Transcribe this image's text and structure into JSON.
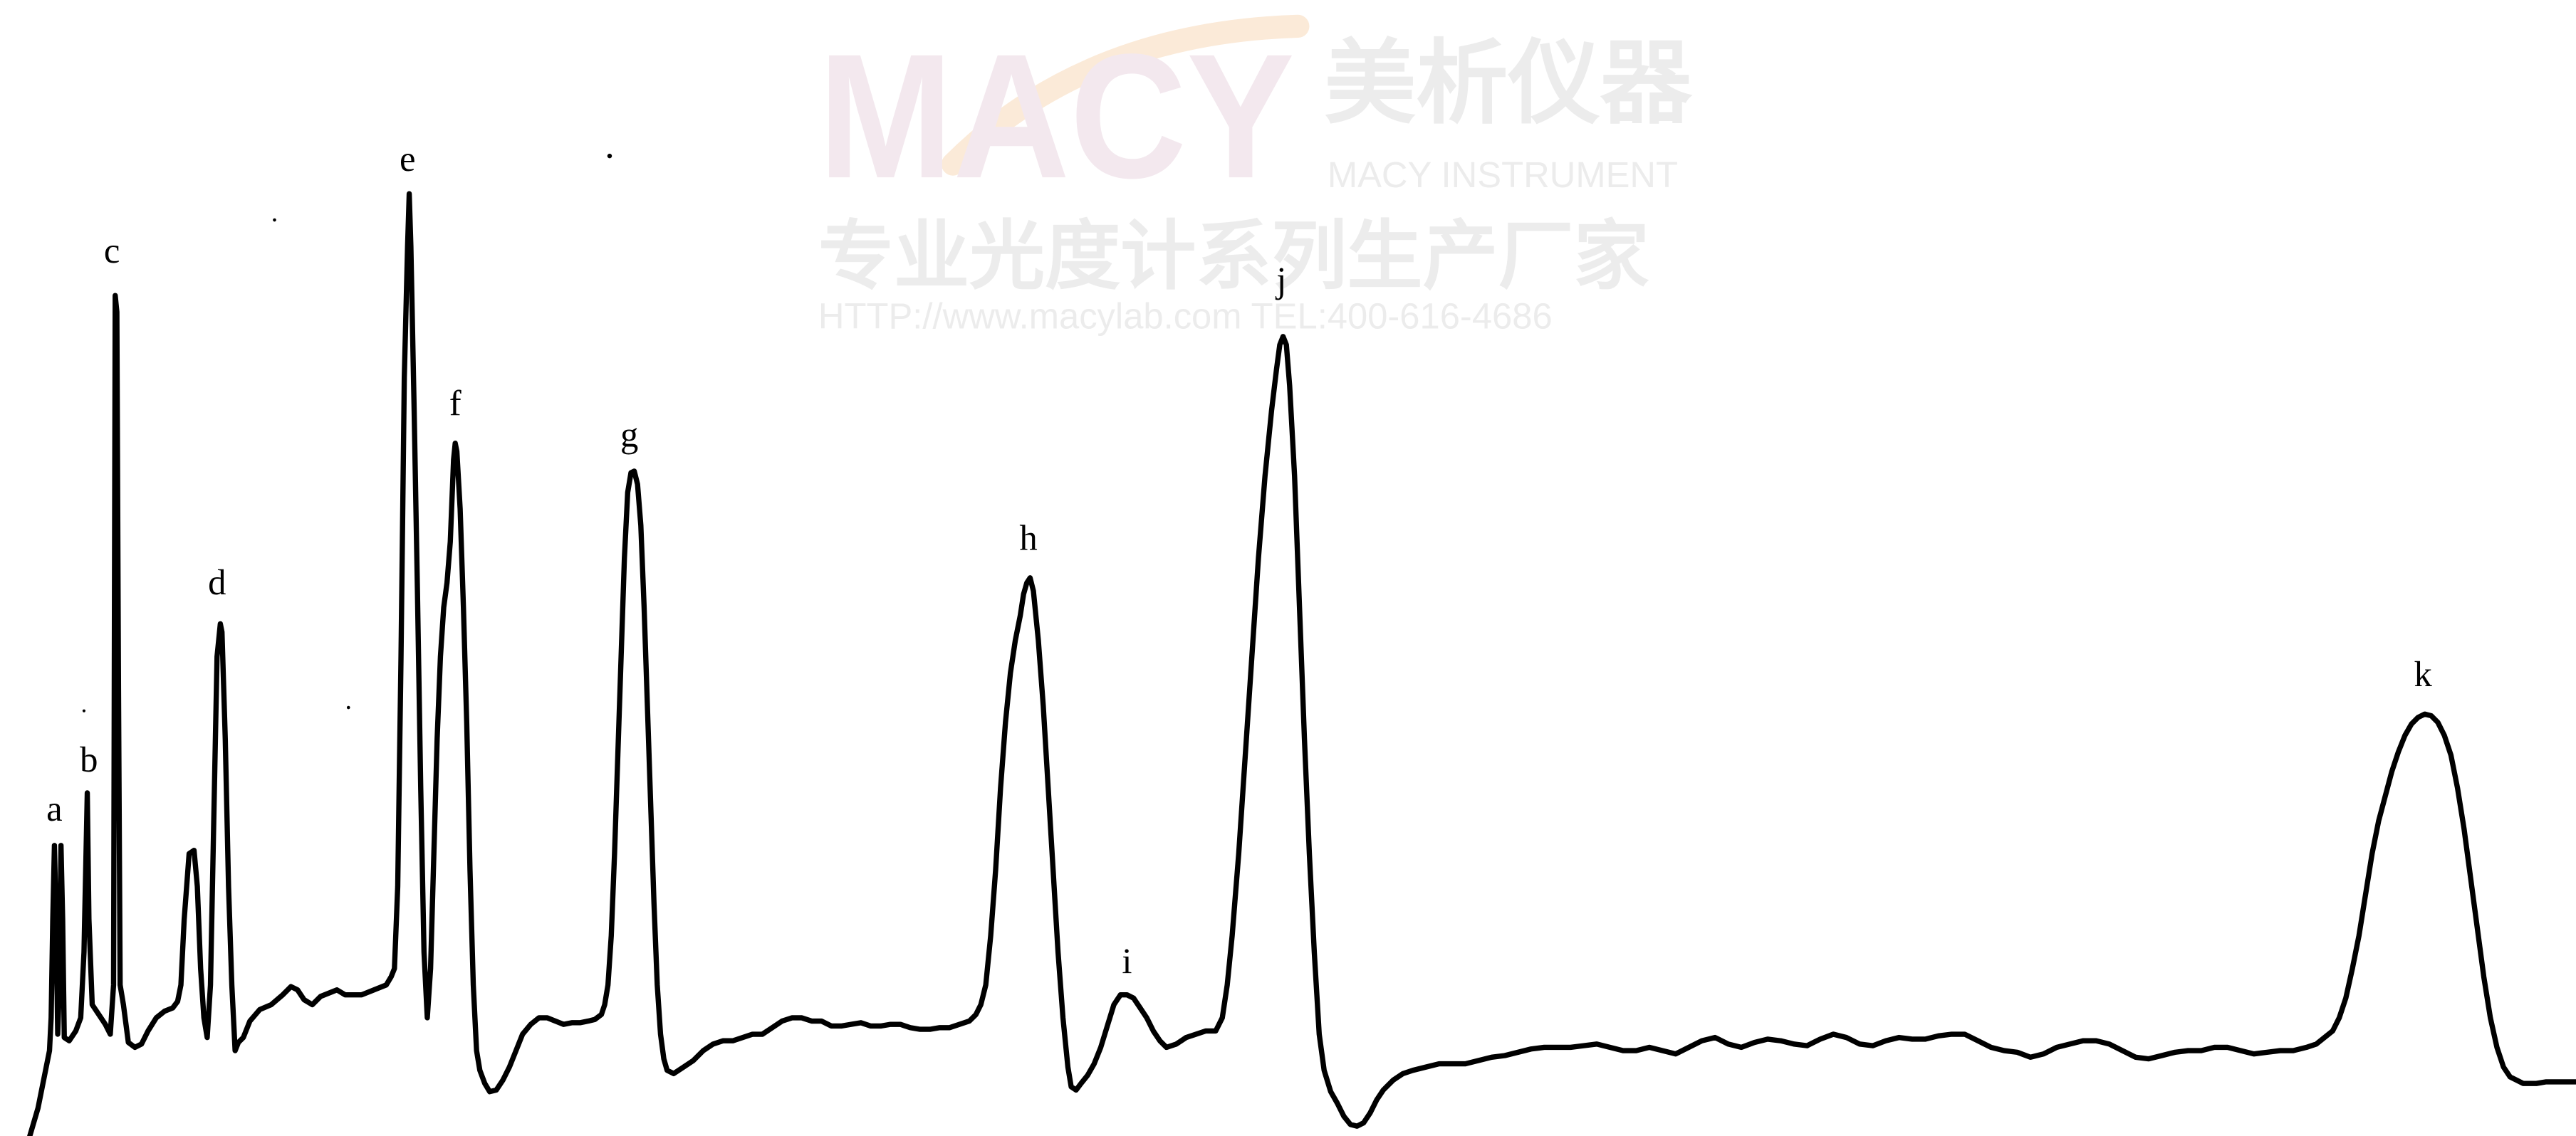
{
  "chart_data": {
    "type": "line",
    "title": "",
    "xlabel": "",
    "ylabel": "",
    "grid": false,
    "legend": "none",
    "line_color": "#000000",
    "x_range": [
      0,
      1568
    ],
    "y_range": [
      0,
      692
    ],
    "points": [
      [
        18,
        692
      ],
      [
        23,
        675
      ],
      [
        27,
        655
      ],
      [
        30,
        640
      ],
      [
        31,
        620
      ],
      [
        32,
        560
      ],
      [
        33,
        515
      ],
      [
        34,
        560
      ],
      [
        35,
        630
      ],
      [
        36,
        600
      ],
      [
        37,
        515
      ],
      [
        38,
        560
      ],
      [
        39,
        632
      ],
      [
        42,
        634
      ],
      [
        46,
        628
      ],
      [
        49,
        620
      ],
      [
        51,
        580
      ],
      [
        53,
        483
      ],
      [
        54,
        560
      ],
      [
        56,
        612
      ],
      [
        60,
        618
      ],
      [
        64,
        624
      ],
      [
        67,
        630
      ],
      [
        69,
        600
      ],
      [
        70,
        180
      ],
      [
        71,
        190
      ],
      [
        72,
        420
      ],
      [
        73,
        600
      ],
      [
        75,
        612
      ],
      [
        78,
        635
      ],
      [
        82,
        638
      ],
      [
        86,
        636
      ],
      [
        90,
        628
      ],
      [
        95,
        620
      ],
      [
        100,
        616
      ],
      [
        105,
        614
      ],
      [
        108,
        610
      ],
      [
        110,
        600
      ],
      [
        112,
        560
      ],
      [
        115,
        520
      ],
      [
        118,
        518
      ],
      [
        120,
        540
      ],
      [
        122,
        590
      ],
      [
        124,
        620
      ],
      [
        126,
        632
      ],
      [
        128,
        600
      ],
      [
        130,
        500
      ],
      [
        132,
        400
      ],
      [
        134,
        380
      ],
      [
        135,
        385
      ],
      [
        137,
        450
      ],
      [
        139,
        540
      ],
      [
        141,
        600
      ],
      [
        143,
        640
      ],
      [
        145,
        635
      ],
      [
        148,
        632
      ],
      [
        152,
        622
      ],
      [
        158,
        615
      ],
      [
        165,
        612
      ],
      [
        172,
        606
      ],
      [
        177,
        601
      ],
      [
        181,
        603
      ],
      [
        185,
        609
      ],
      [
        190,
        612
      ],
      [
        195,
        607
      ],
      [
        200,
        605
      ],
      [
        205,
        603
      ],
      [
        210,
        606
      ],
      [
        215,
        606
      ],
      [
        220,
        606
      ],
      [
        225,
        604
      ],
      [
        230,
        602
      ],
      [
        235,
        600
      ],
      [
        238,
        595
      ],
      [
        240,
        590
      ],
      [
        242,
        540
      ],
      [
        244,
        400
      ],
      [
        246,
        230
      ],
      [
        248,
        150
      ],
      [
        249,
        118
      ],
      [
        250,
        150
      ],
      [
        252,
        250
      ],
      [
        254,
        360
      ],
      [
        256,
        480
      ],
      [
        258,
        580
      ],
      [
        260,
        620
      ],
      [
        262,
        590
      ],
      [
        264,
        520
      ],
      [
        266,
        450
      ],
      [
        268,
        400
      ],
      [
        270,
        370
      ],
      [
        272,
        355
      ],
      [
        274,
        330
      ],
      [
        276,
        280
      ],
      [
        277,
        270
      ],
      [
        278,
        275
      ],
      [
        280,
        310
      ],
      [
        282,
        370
      ],
      [
        284,
        440
      ],
      [
        286,
        530
      ],
      [
        288,
        600
      ],
      [
        290,
        640
      ],
      [
        292,
        652
      ],
      [
        295,
        660
      ],
      [
        298,
        665
      ],
      [
        302,
        664
      ],
      [
        306,
        658
      ],
      [
        310,
        650
      ],
      [
        314,
        640
      ],
      [
        318,
        630
      ],
      [
        323,
        624
      ],
      [
        328,
        620
      ],
      [
        333,
        620
      ],
      [
        338,
        622
      ],
      [
        343,
        624
      ],
      [
        348,
        623
      ],
      [
        353,
        623
      ],
      [
        358,
        622
      ],
      [
        362,
        621
      ],
      [
        366,
        618
      ],
      [
        368,
        612
      ],
      [
        370,
        600
      ],
      [
        372,
        570
      ],
      [
        374,
        520
      ],
      [
        376,
        460
      ],
      [
        378,
        400
      ],
      [
        380,
        340
      ],
      [
        382,
        300
      ],
      [
        384,
        288
      ],
      [
        386,
        287
      ],
      [
        388,
        295
      ],
      [
        390,
        320
      ],
      [
        392,
        370
      ],
      [
        394,
        430
      ],
      [
        396,
        490
      ],
      [
        398,
        550
      ],
      [
        400,
        600
      ],
      [
        402,
        630
      ],
      [
        404,
        645
      ],
      [
        406,
        652
      ],
      [
        410,
        654
      ],
      [
        416,
        650
      ],
      [
        422,
        646
      ],
      [
        428,
        640
      ],
      [
        434,
        636
      ],
      [
        440,
        634
      ],
      [
        446,
        634
      ],
      [
        452,
        632
      ],
      [
        458,
        630
      ],
      [
        464,
        630
      ],
      [
        470,
        626
      ],
      [
        476,
        622
      ],
      [
        482,
        620
      ],
      [
        488,
        620
      ],
      [
        494,
        622
      ],
      [
        500,
        622
      ],
      [
        506,
        625
      ],
      [
        512,
        625
      ],
      [
        518,
        624
      ],
      [
        524,
        623
      ],
      [
        530,
        625
      ],
      [
        536,
        625
      ],
      [
        542,
        624
      ],
      [
        548,
        624
      ],
      [
        554,
        626
      ],
      [
        560,
        627
      ],
      [
        566,
        627
      ],
      [
        572,
        626
      ],
      [
        578,
        626
      ],
      [
        584,
        624
      ],
      [
        590,
        622
      ],
      [
        594,
        618
      ],
      [
        597,
        612
      ],
      [
        600,
        600
      ],
      [
        603,
        570
      ],
      [
        606,
        530
      ],
      [
        609,
        480
      ],
      [
        612,
        440
      ],
      [
        615,
        410
      ],
      [
        618,
        390
      ],
      [
        621,
        375
      ],
      [
        623,
        362
      ],
      [
        625,
        355
      ],
      [
        627,
        352
      ],
      [
        629,
        360
      ],
      [
        632,
        390
      ],
      [
        635,
        430
      ],
      [
        638,
        480
      ],
      [
        641,
        530
      ],
      [
        644,
        580
      ],
      [
        647,
        620
      ],
      [
        650,
        650
      ],
      [
        652,
        662
      ],
      [
        655,
        664
      ],
      [
        658,
        660
      ],
      [
        662,
        655
      ],
      [
        666,
        648
      ],
      [
        670,
        638
      ],
      [
        674,
        625
      ],
      [
        678,
        612
      ],
      [
        682,
        606
      ],
      [
        686,
        606
      ],
      [
        690,
        608
      ],
      [
        694,
        614
      ],
      [
        698,
        620
      ],
      [
        702,
        628
      ],
      [
        706,
        634
      ],
      [
        710,
        638
      ],
      [
        716,
        636
      ],
      [
        722,
        632
      ],
      [
        728,
        630
      ],
      [
        734,
        628
      ],
      [
        740,
        628
      ],
      [
        744,
        620
      ],
      [
        747,
        600
      ],
      [
        750,
        570
      ],
      [
        754,
        520
      ],
      [
        758,
        460
      ],
      [
        762,
        400
      ],
      [
        766,
        340
      ],
      [
        770,
        290
      ],
      [
        774,
        250
      ],
      [
        777,
        225
      ],
      [
        779,
        210
      ],
      [
        781,
        205
      ],
      [
        783,
        210
      ],
      [
        785,
        235
      ],
      [
        788,
        290
      ],
      [
        791,
        370
      ],
      [
        794,
        450
      ],
      [
        797,
        520
      ],
      [
        800,
        580
      ],
      [
        803,
        630
      ],
      [
        806,
        652
      ],
      [
        810,
        665
      ],
      [
        814,
        672
      ],
      [
        818,
        680
      ],
      [
        822,
        685
      ],
      [
        826,
        686
      ],
      [
        830,
        684
      ],
      [
        834,
        678
      ],
      [
        838,
        670
      ],
      [
        842,
        664
      ],
      [
        848,
        658
      ],
      [
        854,
        654
      ],
      [
        860,
        652
      ],
      [
        868,
        650
      ],
      [
        876,
        648
      ],
      [
        884,
        648
      ],
      [
        892,
        648
      ],
      [
        900,
        646
      ],
      [
        908,
        644
      ],
      [
        916,
        643
      ],
      [
        924,
        641
      ],
      [
        932,
        639
      ],
      [
        940,
        638
      ],
      [
        948,
        638
      ],
      [
        956,
        638
      ],
      [
        964,
        637
      ],
      [
        972,
        636
      ],
      [
        980,
        638
      ],
      [
        988,
        640
      ],
      [
        996,
        640
      ],
      [
        1004,
        638
      ],
      [
        1012,
        640
      ],
      [
        1020,
        642
      ],
      [
        1028,
        638
      ],
      [
        1036,
        634
      ],
      [
        1044,
        632
      ],
      [
        1052,
        636
      ],
      [
        1060,
        638
      ],
      [
        1068,
        635
      ],
      [
        1076,
        633
      ],
      [
        1084,
        634
      ],
      [
        1092,
        636
      ],
      [
        1100,
        637
      ],
      [
        1108,
        633
      ],
      [
        1116,
        630
      ],
      [
        1124,
        632
      ],
      [
        1132,
        636
      ],
      [
        1140,
        637
      ],
      [
        1148,
        634
      ],
      [
        1156,
        632
      ],
      [
        1164,
        633
      ],
      [
        1172,
        633
      ],
      [
        1180,
        631
      ],
      [
        1188,
        630
      ],
      [
        1196,
        630
      ],
      [
        1204,
        634
      ],
      [
        1212,
        638
      ],
      [
        1220,
        640
      ],
      [
        1228,
        641
      ],
      [
        1236,
        644
      ],
      [
        1244,
        642
      ],
      [
        1252,
        638
      ],
      [
        1260,
        636
      ],
      [
        1268,
        634
      ],
      [
        1276,
        634
      ],
      [
        1284,
        636
      ],
      [
        1292,
        640
      ],
      [
        1300,
        644
      ],
      [
        1308,
        645
      ],
      [
        1316,
        643
      ],
      [
        1324,
        641
      ],
      [
        1332,
        640
      ],
      [
        1340,
        640
      ],
      [
        1348,
        638
      ],
      [
        1356,
        638
      ],
      [
        1364,
        640
      ],
      [
        1372,
        642
      ],
      [
        1380,
        641
      ],
      [
        1388,
        640
      ],
      [
        1396,
        640
      ],
      [
        1404,
        638
      ],
      [
        1410,
        636
      ],
      [
        1415,
        632
      ],
      [
        1420,
        628
      ],
      [
        1424,
        620
      ],
      [
        1428,
        608
      ],
      [
        1432,
        590
      ],
      [
        1436,
        570
      ],
      [
        1440,
        545
      ],
      [
        1444,
        520
      ],
      [
        1448,
        500
      ],
      [
        1452,
        485
      ],
      [
        1456,
        470
      ],
      [
        1460,
        458
      ],
      [
        1464,
        448
      ],
      [
        1468,
        441
      ],
      [
        1472,
        437
      ],
      [
        1476,
        435
      ],
      [
        1480,
        436
      ],
      [
        1484,
        440
      ],
      [
        1488,
        448
      ],
      [
        1492,
        460
      ],
      [
        1496,
        480
      ],
      [
        1500,
        505
      ],
      [
        1504,
        535
      ],
      [
        1508,
        565
      ],
      [
        1512,
        595
      ],
      [
        1516,
        620
      ],
      [
        1520,
        638
      ],
      [
        1524,
        650
      ],
      [
        1528,
        656
      ],
      [
        1532,
        658
      ],
      [
        1536,
        660
      ],
      [
        1540,
        660
      ],
      [
        1544,
        660
      ],
      [
        1550,
        659
      ],
      [
        1556,
        659
      ],
      [
        1562,
        659
      ],
      [
        1568,
        659
      ]
    ],
    "peak_labels": [
      {
        "text": "a",
        "x": 33,
        "y": 500
      },
      {
        "text": "b",
        "x": 54,
        "y": 470
      },
      {
        "text": "c",
        "x": 68,
        "y": 160
      },
      {
        "text": "d",
        "x": 132,
        "y": 362
      },
      {
        "text": "e",
        "x": 248,
        "y": 104
      },
      {
        "text": "f",
        "x": 277,
        "y": 253
      },
      {
        "text": "g",
        "x": 383,
        "y": 272
      },
      {
        "text": "h",
        "x": 626,
        "y": 335
      },
      {
        "text": "i",
        "x": 686,
        "y": 593
      },
      {
        "text": "j",
        "x": 780,
        "y": 178
      },
      {
        "text": "k",
        "x": 1475,
        "y": 418
      }
    ]
  },
  "watermark": {
    "logo_text": "MACY",
    "cn_title": "美析仪器",
    "en_title": "MACY INSTRUMENT",
    "cn_slogan": "专业光度计系列生产厂家",
    "contact": "HTTP://www.macylab.com  TEL:400-616-4686",
    "logo_color": "#f3e8ee",
    "text_color": "#ececec",
    "arc_color": "#fbead8"
  }
}
